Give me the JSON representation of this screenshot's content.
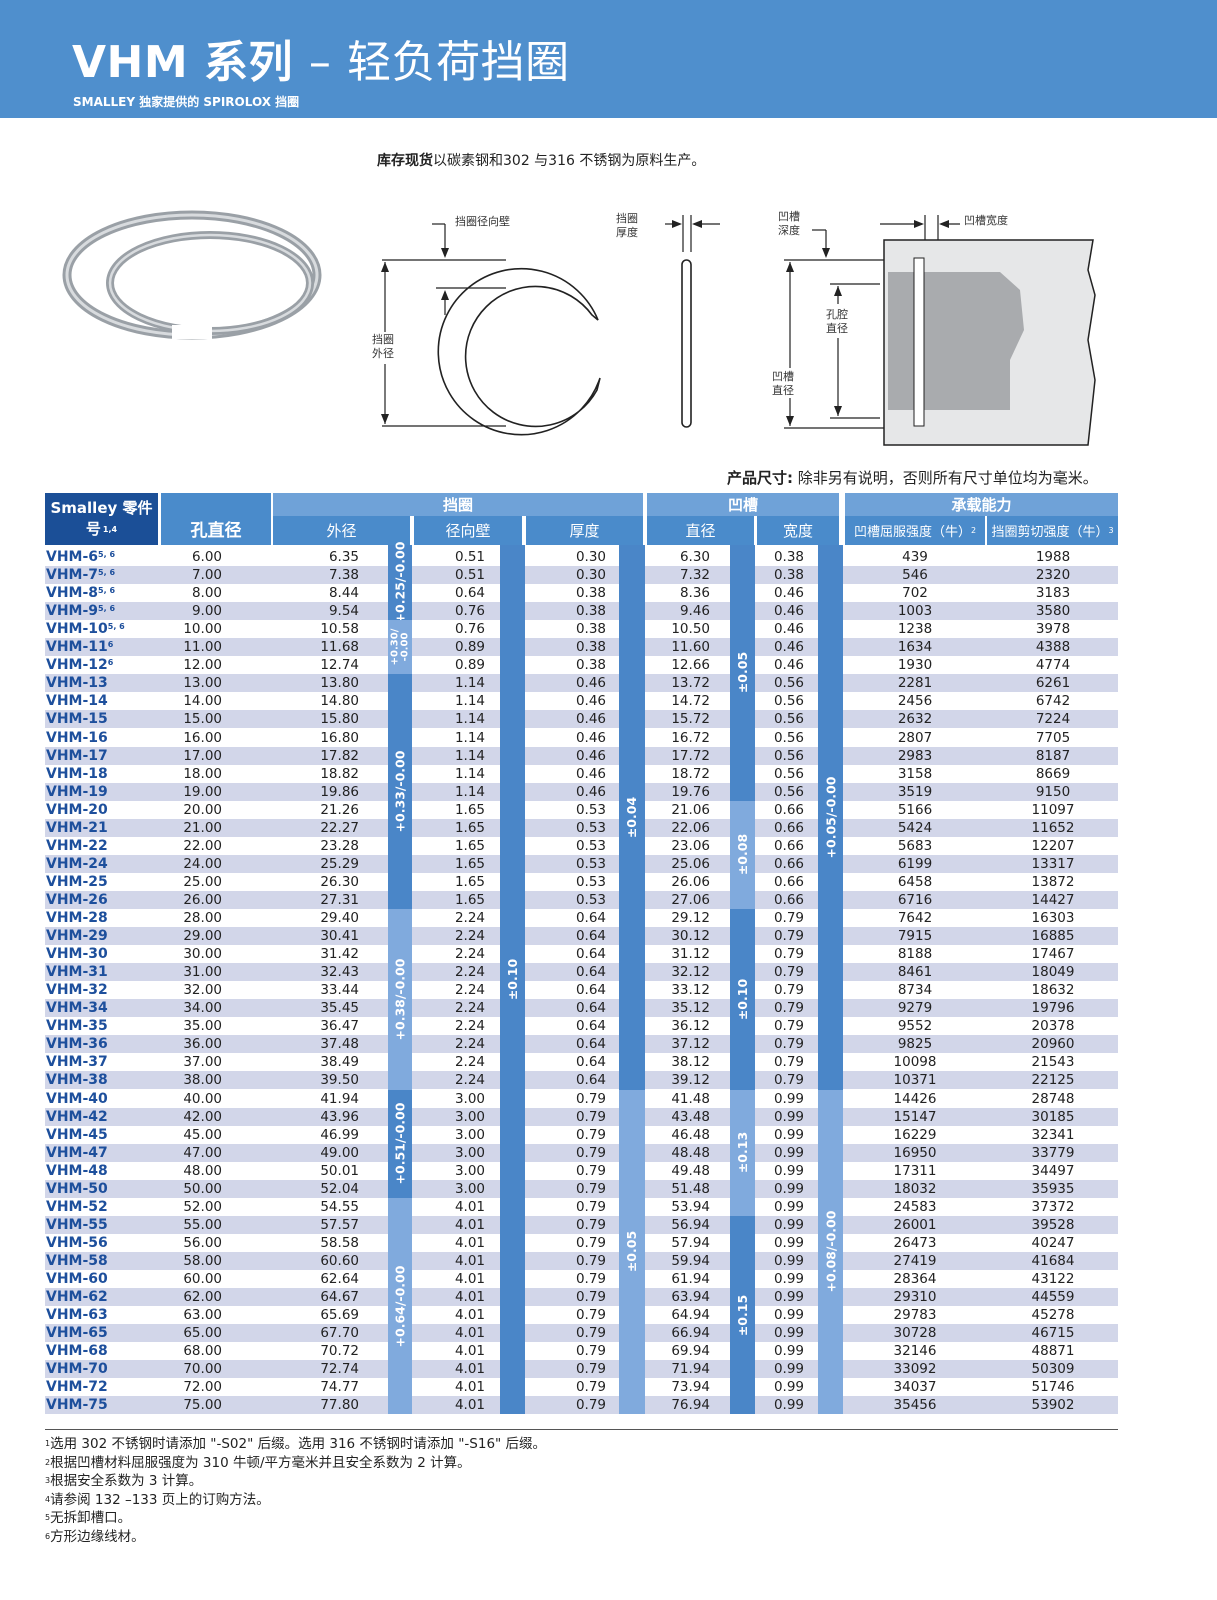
{
  "header": {
    "title_code": "VHM 系列",
    "title_dash": "–",
    "title_text": "轻负荷挡圈",
    "subtitle": "SMALLEY 独家提供的 SPIROLOX 挡圈"
  },
  "intro": {
    "bold": "库存现货",
    "text": "以碳素钢和302 与316 不锈钢为原料生产。"
  },
  "diagram": {
    "radial_wall": "挡圈径向壁",
    "outer_dia_1": "挡圈",
    "outer_dia_2": "外径",
    "thickness_1": "挡圈",
    "thickness_2": "厚度",
    "groove_depth_1": "凹槽",
    "groove_depth_2": "深度",
    "groove_width": "凹槽宽度",
    "bore_dia_1": "孔腔",
    "bore_dia_2": "直径",
    "groove_dia_1": "凹槽",
    "groove_dia_2": "直径"
  },
  "dim_note": {
    "bold": "产品尺寸:",
    "text": "除非另有说明，否则所有尺寸单位均为毫米。"
  },
  "table": {
    "headers": {
      "part": "Smalley 零件号",
      "part_sup": "1,4",
      "bore": "孔直径",
      "ring": "挡圈",
      "od": "外径",
      "wall": "径向壁",
      "thick": "厚度",
      "groove": "凹槽",
      "gdia": "直径",
      "gwidth": "宽度",
      "capacity": "承载能力",
      "yield": "凹槽屈服强度（牛）",
      "yield_sup": "2",
      "shear": "挡圈剪切强度（牛）",
      "shear_sup": "3"
    },
    "colors": {
      "dark_header": "#1b4f97",
      "header": "#4a8bcb",
      "band": "#6fa2d8",
      "bar_dark": "#4a86c8",
      "bar_light": "#80aadd",
      "stripe": "#d2d6e9",
      "part_text": "#1d4f9c"
    },
    "rows": [
      [
        "VHM-6",
        "5, 6",
        "6.00",
        "6.35",
        "0.51",
        "0.30",
        "6.30",
        "0.38",
        "439",
        "1988"
      ],
      [
        "VHM-7",
        "5, 6",
        "7.00",
        "7.38",
        "0.51",
        "0.30",
        "7.32",
        "0.38",
        "546",
        "2320"
      ],
      [
        "VHM-8",
        "5, 6",
        "8.00",
        "8.44",
        "0.64",
        "0.38",
        "8.36",
        "0.46",
        "702",
        "3183"
      ],
      [
        "VHM-9",
        "5, 6",
        "9.00",
        "9.54",
        "0.76",
        "0.38",
        "9.46",
        "0.46",
        "1003",
        "3580"
      ],
      [
        "VHM-10",
        "5, 6",
        "10.00",
        "10.58",
        "0.76",
        "0.38",
        "10.50",
        "0.46",
        "1238",
        "3978"
      ],
      [
        "VHM-11",
        "6",
        "11.00",
        "11.68",
        "0.89",
        "0.38",
        "11.60",
        "0.46",
        "1634",
        "4388"
      ],
      [
        "VHM-12",
        "6",
        "12.00",
        "12.74",
        "0.89",
        "0.38",
        "12.66",
        "0.46",
        "1930",
        "4774"
      ],
      [
        "VHM-13",
        "",
        "13.00",
        "13.80",
        "1.14",
        "0.46",
        "13.72",
        "0.56",
        "2281",
        "6261"
      ],
      [
        "VHM-14",
        "",
        "14.00",
        "14.80",
        "1.14",
        "0.46",
        "14.72",
        "0.56",
        "2456",
        "6742"
      ],
      [
        "VHM-15",
        "",
        "15.00",
        "15.80",
        "1.14",
        "0.46",
        "15.72",
        "0.56",
        "2632",
        "7224"
      ],
      [
        "VHM-16",
        "",
        "16.00",
        "16.80",
        "1.14",
        "0.46",
        "16.72",
        "0.56",
        "2807",
        "7705"
      ],
      [
        "VHM-17",
        "",
        "17.00",
        "17.82",
        "1.14",
        "0.46",
        "17.72",
        "0.56",
        "2983",
        "8187"
      ],
      [
        "VHM-18",
        "",
        "18.00",
        "18.82",
        "1.14",
        "0.46",
        "18.72",
        "0.56",
        "3158",
        "8669"
      ],
      [
        "VHM-19",
        "",
        "19.00",
        "19.86",
        "1.14",
        "0.46",
        "19.76",
        "0.56",
        "3519",
        "9150"
      ],
      [
        "VHM-20",
        "",
        "20.00",
        "21.26",
        "1.65",
        "0.53",
        "21.06",
        "0.66",
        "5166",
        "11097"
      ],
      [
        "VHM-21",
        "",
        "21.00",
        "22.27",
        "1.65",
        "0.53",
        "22.06",
        "0.66",
        "5424",
        "11652"
      ],
      [
        "VHM-22",
        "",
        "22.00",
        "23.28",
        "1.65",
        "0.53",
        "23.06",
        "0.66",
        "5683",
        "12207"
      ],
      [
        "VHM-24",
        "",
        "24.00",
        "25.29",
        "1.65",
        "0.53",
        "25.06",
        "0.66",
        "6199",
        "13317"
      ],
      [
        "VHM-25",
        "",
        "25.00",
        "26.30",
        "1.65",
        "0.53",
        "26.06",
        "0.66",
        "6458",
        "13872"
      ],
      [
        "VHM-26",
        "",
        "26.00",
        "27.31",
        "1.65",
        "0.53",
        "27.06",
        "0.66",
        "6716",
        "14427"
      ],
      [
        "VHM-28",
        "",
        "28.00",
        "29.40",
        "2.24",
        "0.64",
        "29.12",
        "0.79",
        "7642",
        "16303"
      ],
      [
        "VHM-29",
        "",
        "29.00",
        "30.41",
        "2.24",
        "0.64",
        "30.12",
        "0.79",
        "7915",
        "16885"
      ],
      [
        "VHM-30",
        "",
        "30.00",
        "31.42",
        "2.24",
        "0.64",
        "31.12",
        "0.79",
        "8188",
        "17467"
      ],
      [
        "VHM-31",
        "",
        "31.00",
        "32.43",
        "2.24",
        "0.64",
        "32.12",
        "0.79",
        "8461",
        "18049"
      ],
      [
        "VHM-32",
        "",
        "32.00",
        "33.44",
        "2.24",
        "0.64",
        "33.12",
        "0.79",
        "8734",
        "18632"
      ],
      [
        "VHM-34",
        "",
        "34.00",
        "35.45",
        "2.24",
        "0.64",
        "35.12",
        "0.79",
        "9279",
        "19796"
      ],
      [
        "VHM-35",
        "",
        "35.00",
        "36.47",
        "2.24",
        "0.64",
        "36.12",
        "0.79",
        "9552",
        "20378"
      ],
      [
        "VHM-36",
        "",
        "36.00",
        "37.48",
        "2.24",
        "0.64",
        "37.12",
        "0.79",
        "9825",
        "20960"
      ],
      [
        "VHM-37",
        "",
        "37.00",
        "38.49",
        "2.24",
        "0.64",
        "38.12",
        "0.79",
        "10098",
        "21543"
      ],
      [
        "VHM-38",
        "",
        "38.00",
        "39.50",
        "2.24",
        "0.64",
        "39.12",
        "0.79",
        "10371",
        "22125"
      ],
      [
        "VHM-40",
        "",
        "40.00",
        "41.94",
        "3.00",
        "0.79",
        "41.48",
        "0.99",
        "14426",
        "28748"
      ],
      [
        "VHM-42",
        "",
        "42.00",
        "43.96",
        "3.00",
        "0.79",
        "43.48",
        "0.99",
        "15147",
        "30185"
      ],
      [
        "VHM-45",
        "",
        "45.00",
        "46.99",
        "3.00",
        "0.79",
        "46.48",
        "0.99",
        "16229",
        "32341"
      ],
      [
        "VHM-47",
        "",
        "47.00",
        "49.00",
        "3.00",
        "0.79",
        "48.48",
        "0.99",
        "16950",
        "33779"
      ],
      [
        "VHM-48",
        "",
        "48.00",
        "50.01",
        "3.00",
        "0.79",
        "49.48",
        "0.99",
        "17311",
        "34497"
      ],
      [
        "VHM-50",
        "",
        "50.00",
        "52.04",
        "3.00",
        "0.79",
        "51.48",
        "0.99",
        "18032",
        "35935"
      ],
      [
        "VHM-52",
        "",
        "52.00",
        "54.55",
        "4.01",
        "0.79",
        "53.94",
        "0.99",
        "24583",
        "37372"
      ],
      [
        "VHM-55",
        "",
        "55.00",
        "57.57",
        "4.01",
        "0.79",
        "56.94",
        "0.99",
        "26001",
        "39528"
      ],
      [
        "VHM-56",
        "",
        "56.00",
        "58.58",
        "4.01",
        "0.79",
        "57.94",
        "0.99",
        "26473",
        "40247"
      ],
      [
        "VHM-58",
        "",
        "58.00",
        "60.60",
        "4.01",
        "0.79",
        "59.94",
        "0.99",
        "27419",
        "41684"
      ],
      [
        "VHM-60",
        "",
        "60.00",
        "62.64",
        "4.01",
        "0.79",
        "61.94",
        "0.99",
        "28364",
        "43122"
      ],
      [
        "VHM-62",
        "",
        "62.00",
        "64.67",
        "4.01",
        "0.79",
        "63.94",
        "0.99",
        "29310",
        "44559"
      ],
      [
        "VHM-63",
        "",
        "63.00",
        "65.69",
        "4.01",
        "0.79",
        "64.94",
        "0.99",
        "29783",
        "45278"
      ],
      [
        "VHM-65",
        "",
        "65.00",
        "67.70",
        "4.01",
        "0.79",
        "66.94",
        "0.99",
        "30728",
        "46715"
      ],
      [
        "VHM-68",
        "",
        "68.00",
        "70.72",
        "4.01",
        "0.79",
        "69.94",
        "0.99",
        "32146",
        "48871"
      ],
      [
        "VHM-70",
        "",
        "70.00",
        "72.74",
        "4.01",
        "0.79",
        "71.94",
        "0.99",
        "33092",
        "50309"
      ],
      [
        "VHM-72",
        "",
        "72.00",
        "74.77",
        "4.01",
        "0.79",
        "73.94",
        "0.99",
        "34037",
        "51746"
      ],
      [
        "VHM-75",
        "",
        "75.00",
        "77.80",
        "4.01",
        "0.79",
        "76.94",
        "0.99",
        "35456",
        "53902"
      ]
    ],
    "tolerances": [
      {
        "column": "od",
        "label": "+0.25/-0.00",
        "first": "VHM-6",
        "last": "VHM-9",
        "shade": "dark"
      },
      {
        "column": "od",
        "label": "+0.30/-0.00",
        "first": "VHM-10",
        "last": "VHM-12",
        "shade": "light"
      },
      {
        "column": "od",
        "label": "+0.33/-0.00",
        "first": "VHM-13",
        "last": "VHM-26",
        "shade": "dark"
      },
      {
        "column": "od",
        "label": "+0.38/-0.00",
        "first": "VHM-28",
        "last": "VHM-38",
        "shade": "light"
      },
      {
        "column": "od",
        "label": "+0.51/-0.00",
        "first": "VHM-40",
        "last": "VHM-50",
        "shade": "dark"
      },
      {
        "column": "od",
        "label": "+0.64/-0.00",
        "first": "VHM-52",
        "last": "VHM-75",
        "shade": "light"
      },
      {
        "column": "wall",
        "label": "±0.10",
        "first": "VHM-6",
        "last": "VHM-75",
        "shade": "dark"
      },
      {
        "column": "thick",
        "label": "±0.04",
        "first": "VHM-6",
        "last": "VHM-38",
        "shade": "dark"
      },
      {
        "column": "thick",
        "label": "±0.05",
        "first": "VHM-40",
        "last": "VHM-75",
        "shade": "light"
      },
      {
        "column": "gdia",
        "label": "±0.05",
        "first": "VHM-6",
        "last": "VHM-19",
        "shade": "dark"
      },
      {
        "column": "gdia",
        "label": "±0.08",
        "first": "VHM-20",
        "last": "VHM-26",
        "shade": "light"
      },
      {
        "column": "gdia",
        "label": "±0.10",
        "first": "VHM-28",
        "last": "VHM-38",
        "shade": "dark"
      },
      {
        "column": "gdia",
        "label": "±0.13",
        "first": "VHM-40",
        "last": "VHM-52",
        "shade": "light"
      },
      {
        "column": "gdia",
        "label": "±0.15",
        "first": "VHM-55",
        "last": "VHM-75",
        "shade": "dark"
      },
      {
        "column": "gwidth",
        "label": "+0.05/-0.00",
        "first": "VHM-6",
        "last": "VHM-38",
        "shade": "dark"
      },
      {
        "column": "gwidth",
        "label": "+0.08/-0.00",
        "first": "VHM-40",
        "last": "VHM-75",
        "shade": "light"
      }
    ]
  },
  "footnotes": [
    {
      "n": "1",
      "text": "选用 302 不锈钢时请添加 \"-S02\" 后缀。选用 316 不锈钢时请添加 \"-S16\" 后缀。"
    },
    {
      "n": "2",
      "text": "根据凹槽材料屈服强度为 310 牛顿/平方毫米并且安全系数为 2 计算。"
    },
    {
      "n": "3",
      "text": "根据安全系数为 3 计算。"
    },
    {
      "n": "4",
      "text": "请参阅 132 –133 页上的订购方法。"
    },
    {
      "n": "5",
      "text": "无拆卸槽口。"
    },
    {
      "n": "6",
      "text": "方形边缘线材。"
    }
  ]
}
